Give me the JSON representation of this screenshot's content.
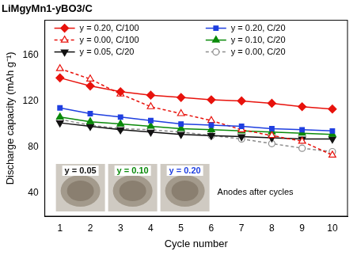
{
  "chart_data": {
    "type": "line",
    "title": "LiMgyMn1-yBO3/C",
    "x_label": "Cycle number",
    "y_label": "Discharge capacity (mAh g⁻¹)",
    "x": [
      1,
      2,
      3,
      4,
      5,
      6,
      7,
      8,
      9,
      10
    ],
    "xlim": [
      0.5,
      10.5
    ],
    "xticks": [
      1,
      2,
      3,
      4,
      5,
      6,
      7,
      8,
      9,
      10
    ],
    "ylim": [
      20,
      190
    ],
    "yticks": [
      40,
      80,
      120,
      160
    ],
    "grid": false,
    "legend": "top",
    "series": [
      {
        "name": "y = 0.20, C/100",
        "color": "#e8120c",
        "marker": "diamond",
        "line_style": "solid",
        "values": [
          140,
          133,
          128,
          125,
          123,
          121,
          120,
          118,
          115,
          113
        ]
      },
      {
        "name": "y = 0.20, C/20",
        "color": "#1f3fe0",
        "marker": "square",
        "line_style": "solid",
        "values": [
          114,
          109,
          106,
          103,
          100,
          99,
          98,
          96,
          95,
          94
        ]
      },
      {
        "name": "y = 0.00, C/100",
        "color": "#e8120c",
        "marker": "open_triangle",
        "line_style": "dashed",
        "values": [
          148,
          139,
          126,
          115,
          109,
          103,
          95,
          90,
          85,
          73
        ]
      },
      {
        "name": "y = 0.10, C/20",
        "color": "#0a8a0a",
        "marker": "triangle",
        "line_style": "solid",
        "values": [
          106,
          102,
          100,
          98,
          96,
          95,
          94,
          93,
          92,
          91
        ]
      },
      {
        "name": "y = 0.05, C/20",
        "color": "#111111",
        "marker": "triangle_down",
        "line_style": "solid",
        "values": [
          101,
          98,
          95,
          93,
          91,
          90,
          89,
          88,
          87,
          87
        ]
      },
      {
        "name": "y = 0.00, C/20",
        "color": "#8c8c8c",
        "marker": "open_circle",
        "line_style": "dashed",
        "values": [
          104,
          99,
          96,
          95,
          93,
          90,
          87,
          83,
          79,
          76
        ]
      }
    ],
    "annotations": [
      "y = 0.05",
      "y = 0.10",
      "y = 0.20",
      "Anodes after cycles"
    ]
  }
}
